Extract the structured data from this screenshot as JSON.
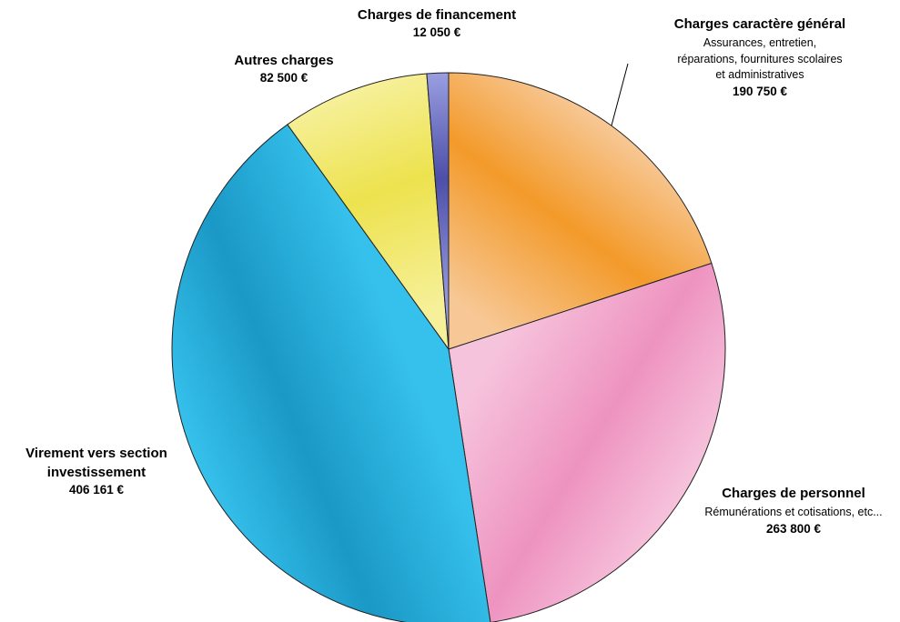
{
  "chart_data": {
    "type": "pie",
    "currency": "€",
    "slices": [
      {
        "name": "Charges caractère général",
        "description": "Assurances, entretien, réparations, fournitures scolaires et administratives",
        "value": 190750,
        "value_label": "190 750 €",
        "color_light": "#f7c896",
        "color_dark": "#f39a2a"
      },
      {
        "name": "Charges de personnel",
        "description": "Rémunérations et cotisations, etc...",
        "value": 263800,
        "value_label": "263 800 €",
        "color_light": "#f6c3dc",
        "color_dark": "#ee93c0"
      },
      {
        "name": "Virement vers section investissement",
        "description": "",
        "value": 406161,
        "value_label": "406 161 €",
        "color_light": "#36c1ec",
        "color_dark": "#1a98c6"
      },
      {
        "name": "Autres charges",
        "description": "",
        "value": 82500,
        "value_label": "82 500 €",
        "color_light": "#f6f09a",
        "color_dark": "#ede24e"
      },
      {
        "name": "Charges de financement",
        "description": "",
        "value": 12050,
        "value_label": "12 050 €",
        "color_light": "#9a9ee0",
        "color_dark": "#4d4fa8"
      }
    ]
  }
}
